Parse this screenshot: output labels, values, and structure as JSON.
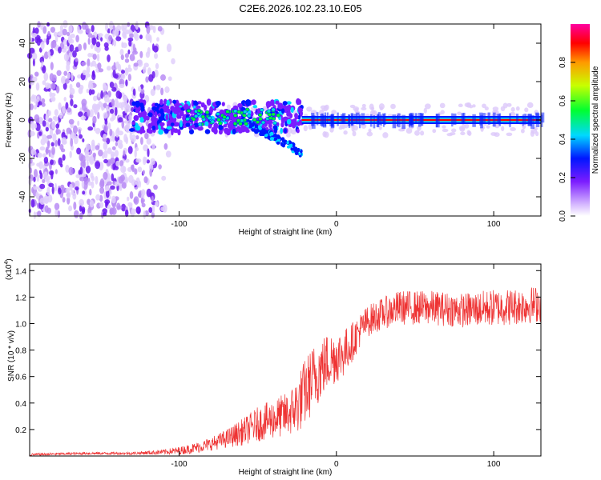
{
  "title": "C2E6.2026.102.23.10.E05",
  "chart_data": [
    {
      "type": "heatmap",
      "xlabel": "Height of straight line (km)",
      "ylabel": "Frequency (Hz)",
      "xlim": [
        -195,
        130
      ],
      "ylim": [
        -50,
        50
      ],
      "xticks": [
        -100,
        0,
        100
      ],
      "yticks": [
        -40,
        -20,
        0,
        20,
        40
      ],
      "colorbar": {
        "label": "Normalized spectral amplitude",
        "range": [
          0,
          1
        ],
        "ticks": [
          "0.0",
          "0.2",
          "0.4",
          "0.6",
          "0.8"
        ],
        "colors": [
          "#ffffff",
          "#d6b8ff",
          "#7b1cff",
          "#0016ff",
          "#00d8ff",
          "#00ff30",
          "#c8ff00",
          "#ff9a00",
          "#ff0000",
          "#ff00a0"
        ]
      },
      "features": [
        {
          "name": "broadband noise",
          "x_range": [
            -195,
            -102
          ],
          "freq_range": [
            -50,
            50
          ]
        },
        {
          "name": "main trace",
          "x_range": [
            -130,
            -22
          ],
          "freq_range": [
            -8,
            10
          ]
        },
        {
          "name": "descending branch",
          "x_range": [
            -60,
            -22
          ],
          "freq_range": [
            -18,
            0
          ]
        },
        {
          "name": "steady carrier line",
          "x_range": [
            -22,
            130
          ],
          "freq_hz": 0,
          "amplitude": 0.85
        }
      ]
    },
    {
      "type": "line",
      "xlabel": "Height of straight line (km)",
      "ylabel": "SNR (10 * v/v)",
      "multiplier": "(x10",
      "multiplier_exp": "4",
      "multiplier_close": ")",
      "xlim": [
        -195,
        130
      ],
      "ylim": [
        0,
        1.45
      ],
      "xticks": [
        -100,
        0,
        100
      ],
      "yticks": [
        "0.2",
        "0.4",
        "0.6",
        "0.8",
        "1.0",
        "1.2",
        "1.4"
      ],
      "series": [
        {
          "name": "SNR",
          "color": "#ee3333",
          "x": [
            -195,
            -160,
            -130,
            -110,
            -100,
            -90,
            -80,
            -70,
            -60,
            -50,
            -40,
            -30,
            -25,
            -20,
            -15,
            -10,
            -5,
            0,
            5,
            10,
            15,
            20,
            30,
            40,
            60,
            80,
            100,
            115,
            130
          ],
          "values": [
            0.01,
            0.02,
            0.02,
            0.03,
            0.04,
            0.06,
            0.09,
            0.13,
            0.18,
            0.24,
            0.28,
            0.32,
            0.38,
            0.48,
            0.58,
            0.66,
            0.72,
            0.75,
            0.78,
            0.86,
            0.95,
            1.02,
            1.08,
            1.12,
            1.12,
            1.1,
            1.12,
            1.13,
            1.15
          ],
          "noise_amp": [
            0.01,
            0.01,
            0.01,
            0.02,
            0.03,
            0.04,
            0.05,
            0.07,
            0.1,
            0.13,
            0.15,
            0.17,
            0.22,
            0.26,
            0.26,
            0.24,
            0.22,
            0.2,
            0.18,
            0.15,
            0.13,
            0.12,
            0.12,
            0.13,
            0.13,
            0.13,
            0.14,
            0.14,
            0.14
          ]
        }
      ]
    }
  ]
}
